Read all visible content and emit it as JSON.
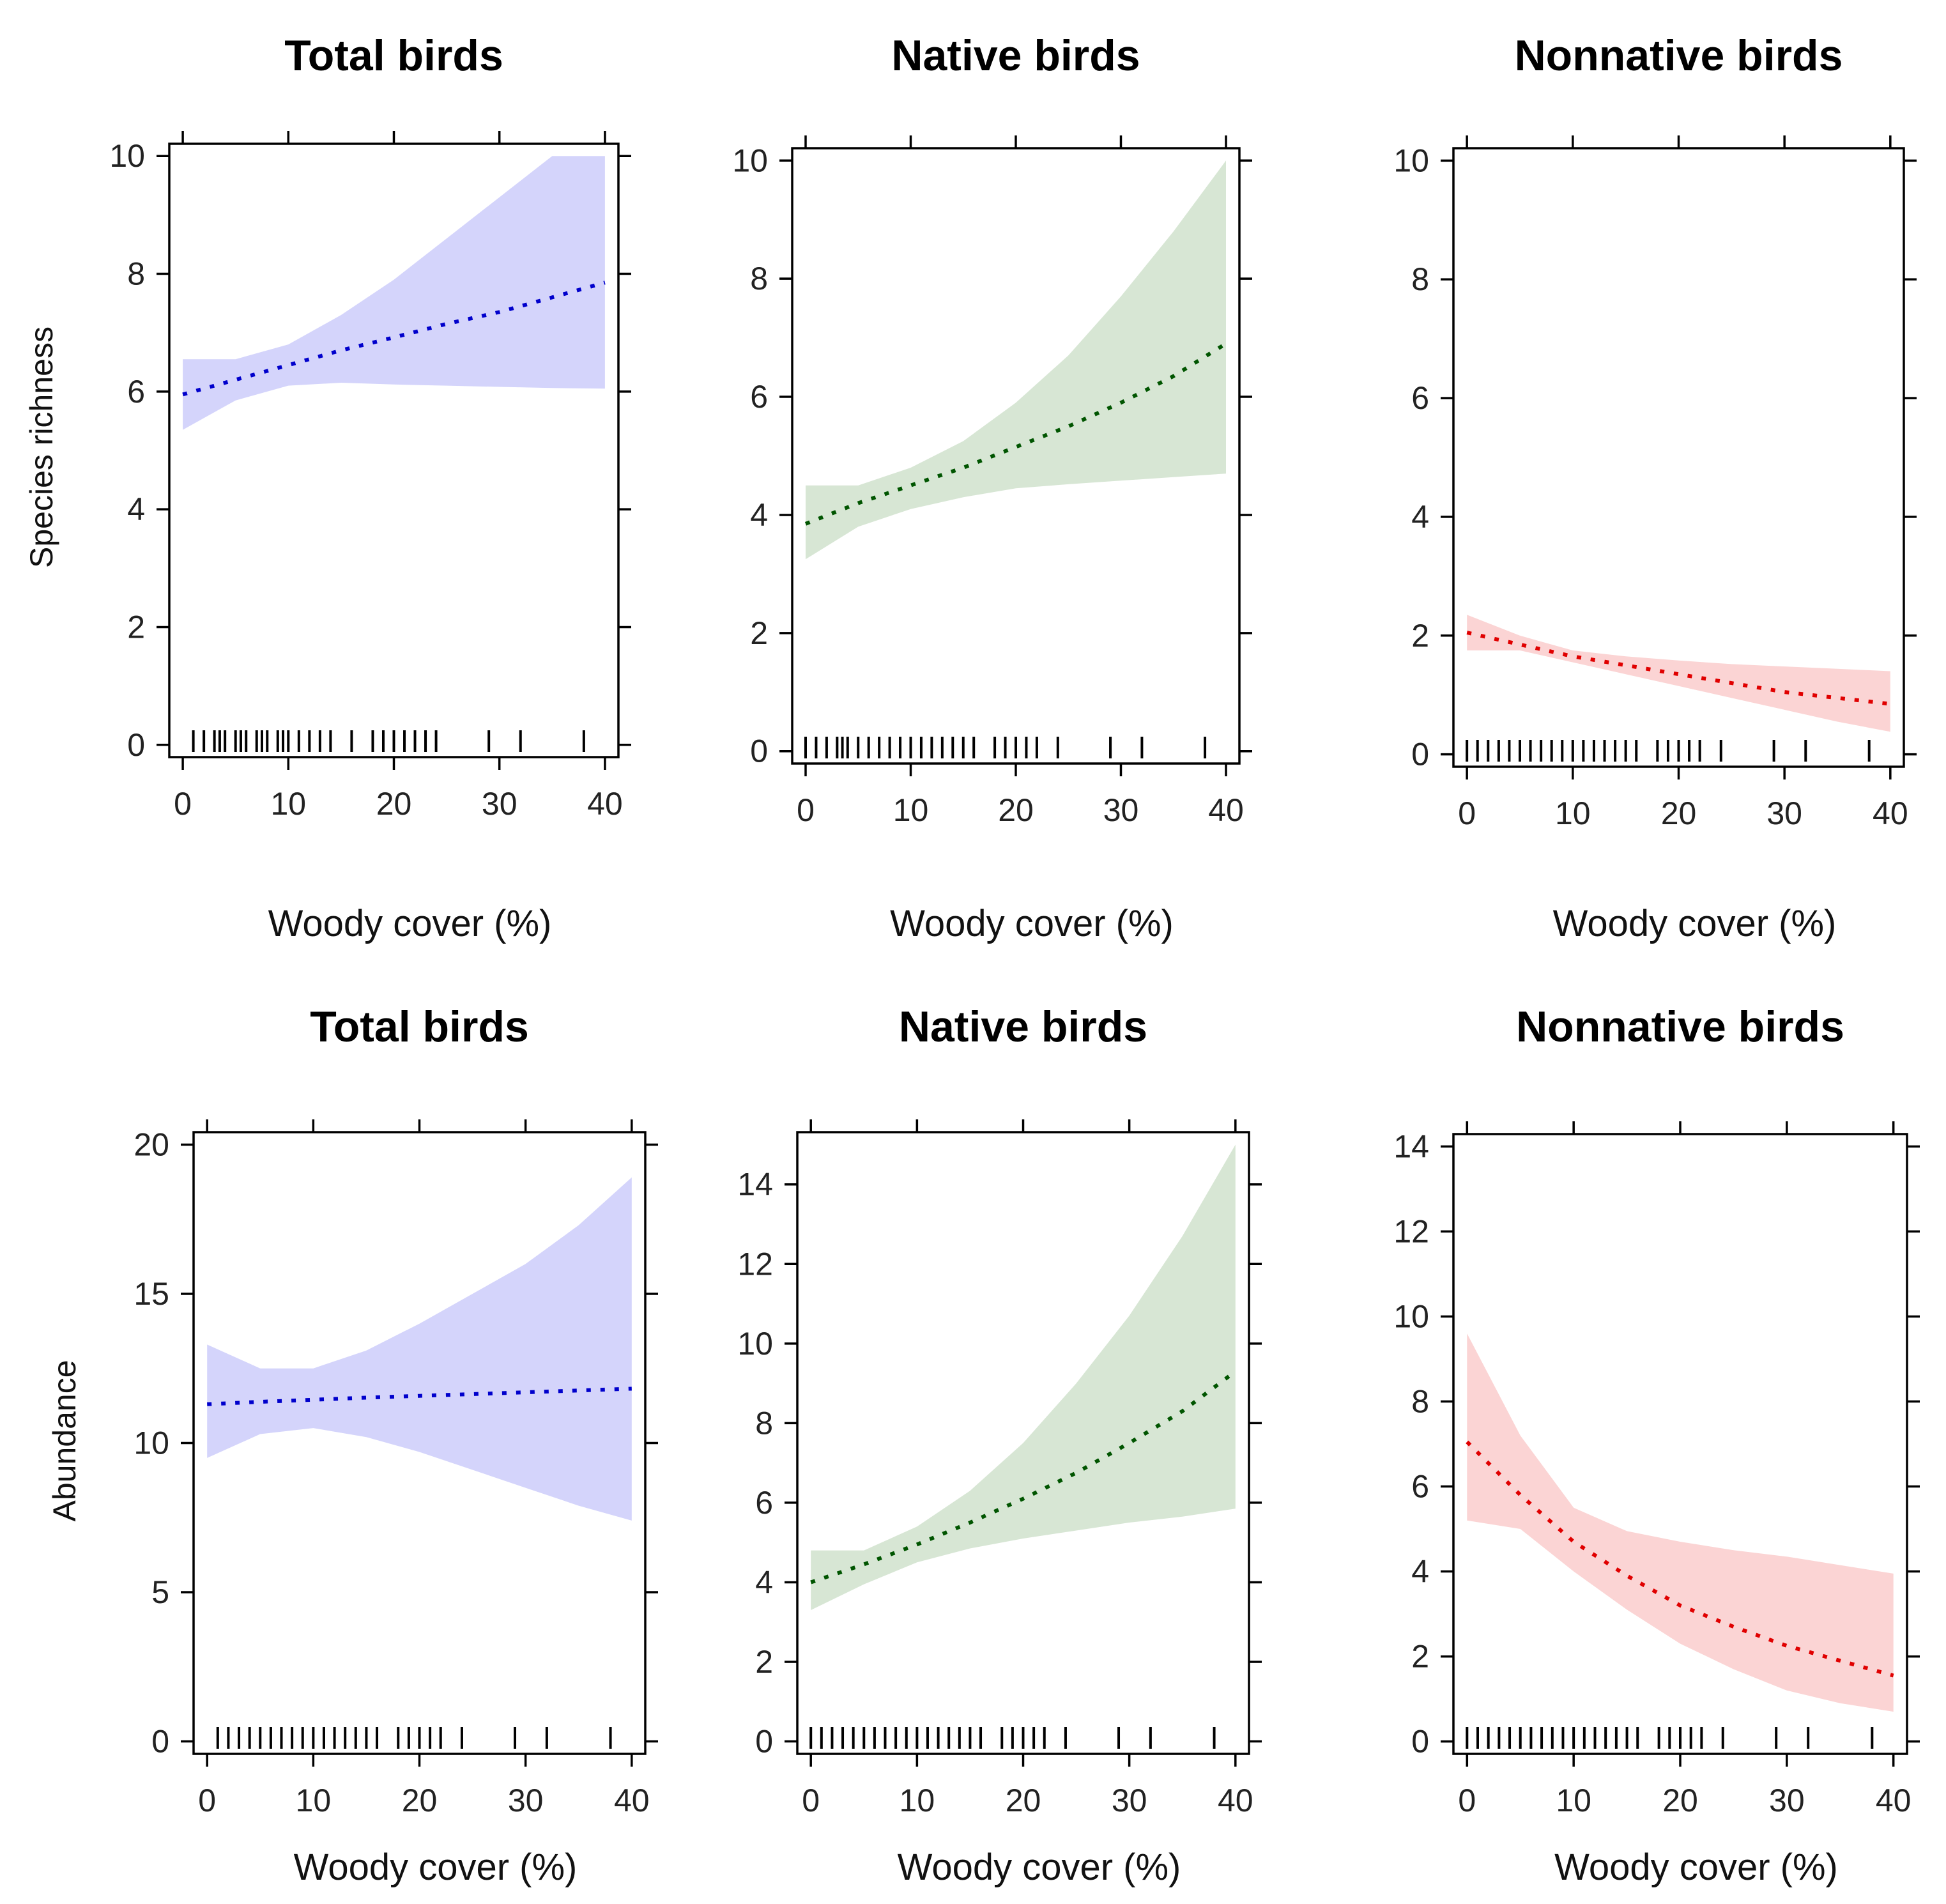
{
  "figure": {
    "rows": [
      {
        "ylabel": "Species richness"
      },
      {
        "ylabel": "Abundance"
      }
    ]
  },
  "chart_data": [
    {
      "type": "line",
      "title": "Total birds",
      "xlabel": "Woody cover  (%)",
      "ylabel": "Species richness",
      "xlim": [
        0,
        40
      ],
      "ylim": [
        0,
        10
      ],
      "xticks": [
        0,
        10,
        20,
        30,
        40
      ],
      "yticks": [
        0,
        2,
        4,
        6,
        8,
        10
      ],
      "colors": {
        "line": "#0000cc",
        "band": "#d4d4fb"
      },
      "x": [
        0,
        5,
        10,
        15,
        20,
        25,
        30,
        35,
        40
      ],
      "series": [
        {
          "name": "fit",
          "values": [
            5.95,
            6.2,
            6.45,
            6.7,
            6.92,
            7.15,
            7.35,
            7.6,
            7.85
          ]
        },
        {
          "name": "lower",
          "values": [
            5.35,
            5.85,
            6.1,
            6.15,
            6.12,
            6.1,
            6.08,
            6.06,
            6.05
          ]
        },
        {
          "name": "upper",
          "values": [
            6.55,
            6.55,
            6.8,
            7.3,
            7.9,
            8.6,
            9.3,
            10.0,
            10.0
          ]
        }
      ],
      "rug": [
        1,
        2,
        3,
        3.5,
        4,
        5,
        5.5,
        6,
        7,
        7.5,
        8,
        9,
        9.5,
        10,
        11,
        12,
        13,
        14,
        16,
        18,
        19,
        20,
        21,
        22,
        23,
        24,
        29,
        32,
        38
      ]
    },
    {
      "type": "line",
      "title": "Native birds",
      "xlabel": "Woody cover  (%)",
      "ylabel": "",
      "xlim": [
        0,
        40
      ],
      "ylim": [
        0,
        10
      ],
      "xticks": [
        0,
        10,
        20,
        30,
        40
      ],
      "yticks": [
        0,
        2,
        4,
        6,
        8,
        10
      ],
      "colors": {
        "line": "#005500",
        "band": "#d7e6d4"
      },
      "x": [
        0,
        5,
        10,
        15,
        20,
        25,
        30,
        35,
        40
      ],
      "series": [
        {
          "name": "fit",
          "values": [
            3.85,
            4.2,
            4.5,
            4.8,
            5.15,
            5.5,
            5.9,
            6.35,
            6.9
          ]
        },
        {
          "name": "lower",
          "values": [
            3.25,
            3.8,
            4.1,
            4.3,
            4.45,
            4.52,
            4.58,
            4.64,
            4.7
          ]
        },
        {
          "name": "upper",
          "values": [
            4.5,
            4.5,
            4.8,
            5.25,
            5.9,
            6.7,
            7.7,
            8.8,
            10.0
          ]
        }
      ],
      "rug": [
        0,
        1,
        2,
        3,
        3.5,
        4,
        5,
        6,
        7,
        8,
        9,
        10,
        11,
        12,
        13,
        14,
        15,
        16,
        18,
        19,
        20,
        21,
        22,
        24,
        29,
        32,
        38
      ]
    },
    {
      "type": "line",
      "title": "Nonnative birds",
      "xlabel": "Woody cover (%)",
      "ylabel": "",
      "xlim": [
        0,
        40
      ],
      "ylim": [
        0,
        10
      ],
      "xticks": [
        0,
        10,
        20,
        30,
        40
      ],
      "yticks": [
        0,
        2,
        4,
        6,
        8,
        10
      ],
      "colors": {
        "line": "#e00000",
        "band": "#fbd4d4"
      },
      "x": [
        0,
        5,
        10,
        15,
        20,
        25,
        30,
        35,
        40
      ],
      "series": [
        {
          "name": "fit",
          "values": [
            2.05,
            1.85,
            1.65,
            1.5,
            1.35,
            1.2,
            1.05,
            0.95,
            0.85
          ]
        },
        {
          "name": "lower",
          "values": [
            1.75,
            1.75,
            1.55,
            1.35,
            1.15,
            0.95,
            0.75,
            0.55,
            0.38
          ]
        },
        {
          "name": "upper",
          "values": [
            2.35,
            2.0,
            1.75,
            1.65,
            1.58,
            1.52,
            1.48,
            1.44,
            1.4
          ]
        }
      ],
      "rug": [
        0,
        1,
        2,
        3,
        4,
        5,
        6,
        7,
        8,
        9,
        10,
        11,
        12,
        13,
        14,
        15,
        16,
        18,
        19,
        20,
        21,
        22,
        24,
        29,
        32,
        38
      ]
    },
    {
      "type": "line",
      "title": "Total birds",
      "xlabel": "Woody cover  (%)",
      "ylabel": "Abundance",
      "xlim": [
        0,
        40
      ],
      "ylim": [
        0,
        20
      ],
      "xticks": [
        0,
        10,
        20,
        30,
        40
      ],
      "yticks": [
        0,
        5,
        10,
        15,
        20
      ],
      "colors": {
        "line": "#0000cc",
        "band": "#d4d4fb"
      },
      "x": [
        0,
        5,
        10,
        15,
        20,
        25,
        30,
        35,
        40
      ],
      "series": [
        {
          "name": "fit",
          "values": [
            11.3,
            11.38,
            11.45,
            11.52,
            11.58,
            11.64,
            11.7,
            11.76,
            11.82
          ]
        },
        {
          "name": "lower",
          "values": [
            9.5,
            10.3,
            10.5,
            10.2,
            9.7,
            9.1,
            8.5,
            7.9,
            7.4
          ]
        },
        {
          "name": "upper",
          "values": [
            13.3,
            12.5,
            12.5,
            13.1,
            14.0,
            15.0,
            16.0,
            17.3,
            18.9
          ]
        }
      ],
      "rug": [
        1,
        2,
        3,
        4,
        5,
        6,
        7,
        8,
        9,
        10,
        11,
        12,
        13,
        14,
        15,
        16,
        18,
        19,
        20,
        21,
        22,
        24,
        29,
        32,
        38
      ]
    },
    {
      "type": "line",
      "title": "Native birds",
      "xlabel": "Woody cover  (%)",
      "ylabel": "",
      "xlim": [
        0,
        40
      ],
      "ylim": [
        0,
        15
      ],
      "xticks": [
        0,
        10,
        20,
        30,
        40
      ],
      "yticks": [
        0,
        2,
        4,
        6,
        8,
        10,
        12,
        14
      ],
      "colors": {
        "line": "#005500",
        "band": "#d7e6d4"
      },
      "x": [
        0,
        5,
        10,
        15,
        20,
        25,
        30,
        35,
        40
      ],
      "series": [
        {
          "name": "fit",
          "values": [
            4.0,
            4.45,
            4.95,
            5.5,
            6.1,
            6.75,
            7.5,
            8.3,
            9.3
          ]
        },
        {
          "name": "lower",
          "values": [
            3.3,
            3.95,
            4.5,
            4.85,
            5.1,
            5.3,
            5.5,
            5.65,
            5.85
          ]
        },
        {
          "name": "upper",
          "values": [
            4.8,
            4.8,
            5.4,
            6.3,
            7.5,
            9.0,
            10.7,
            12.7,
            15.0
          ]
        }
      ],
      "rug": [
        0,
        1,
        2,
        3,
        4,
        5,
        6,
        7,
        8,
        9,
        10,
        11,
        12,
        13,
        14,
        15,
        16,
        18,
        19,
        20,
        21,
        22,
        24,
        29,
        32,
        38
      ]
    },
    {
      "type": "line",
      "title": "Nonnative birds",
      "xlabel": "Woody cover (%)",
      "ylabel": "",
      "xlim": [
        0,
        40
      ],
      "ylim": [
        0,
        14
      ],
      "xticks": [
        0,
        10,
        20,
        30,
        40
      ],
      "yticks": [
        0,
        2,
        4,
        6,
        8,
        10,
        12,
        14
      ],
      "colors": {
        "line": "#e00000",
        "band": "#fbd4d4"
      },
      "x": [
        0,
        5,
        10,
        15,
        20,
        25,
        30,
        35,
        40
      ],
      "series": [
        {
          "name": "fit",
          "values": [
            7.05,
            5.8,
            4.7,
            3.9,
            3.2,
            2.7,
            2.25,
            1.9,
            1.55
          ]
        },
        {
          "name": "lower",
          "values": [
            5.2,
            5.0,
            4.0,
            3.1,
            2.3,
            1.7,
            1.2,
            0.9,
            0.7
          ]
        },
        {
          "name": "upper",
          "values": [
            9.6,
            7.2,
            5.5,
            4.95,
            4.7,
            4.5,
            4.35,
            4.15,
            3.95
          ]
        }
      ],
      "rug": [
        0,
        1,
        2,
        3,
        4,
        5,
        6,
        7,
        8,
        9,
        10,
        11,
        12,
        13,
        14,
        15,
        16,
        18,
        19,
        20,
        21,
        22,
        24,
        29,
        32,
        38
      ]
    }
  ]
}
